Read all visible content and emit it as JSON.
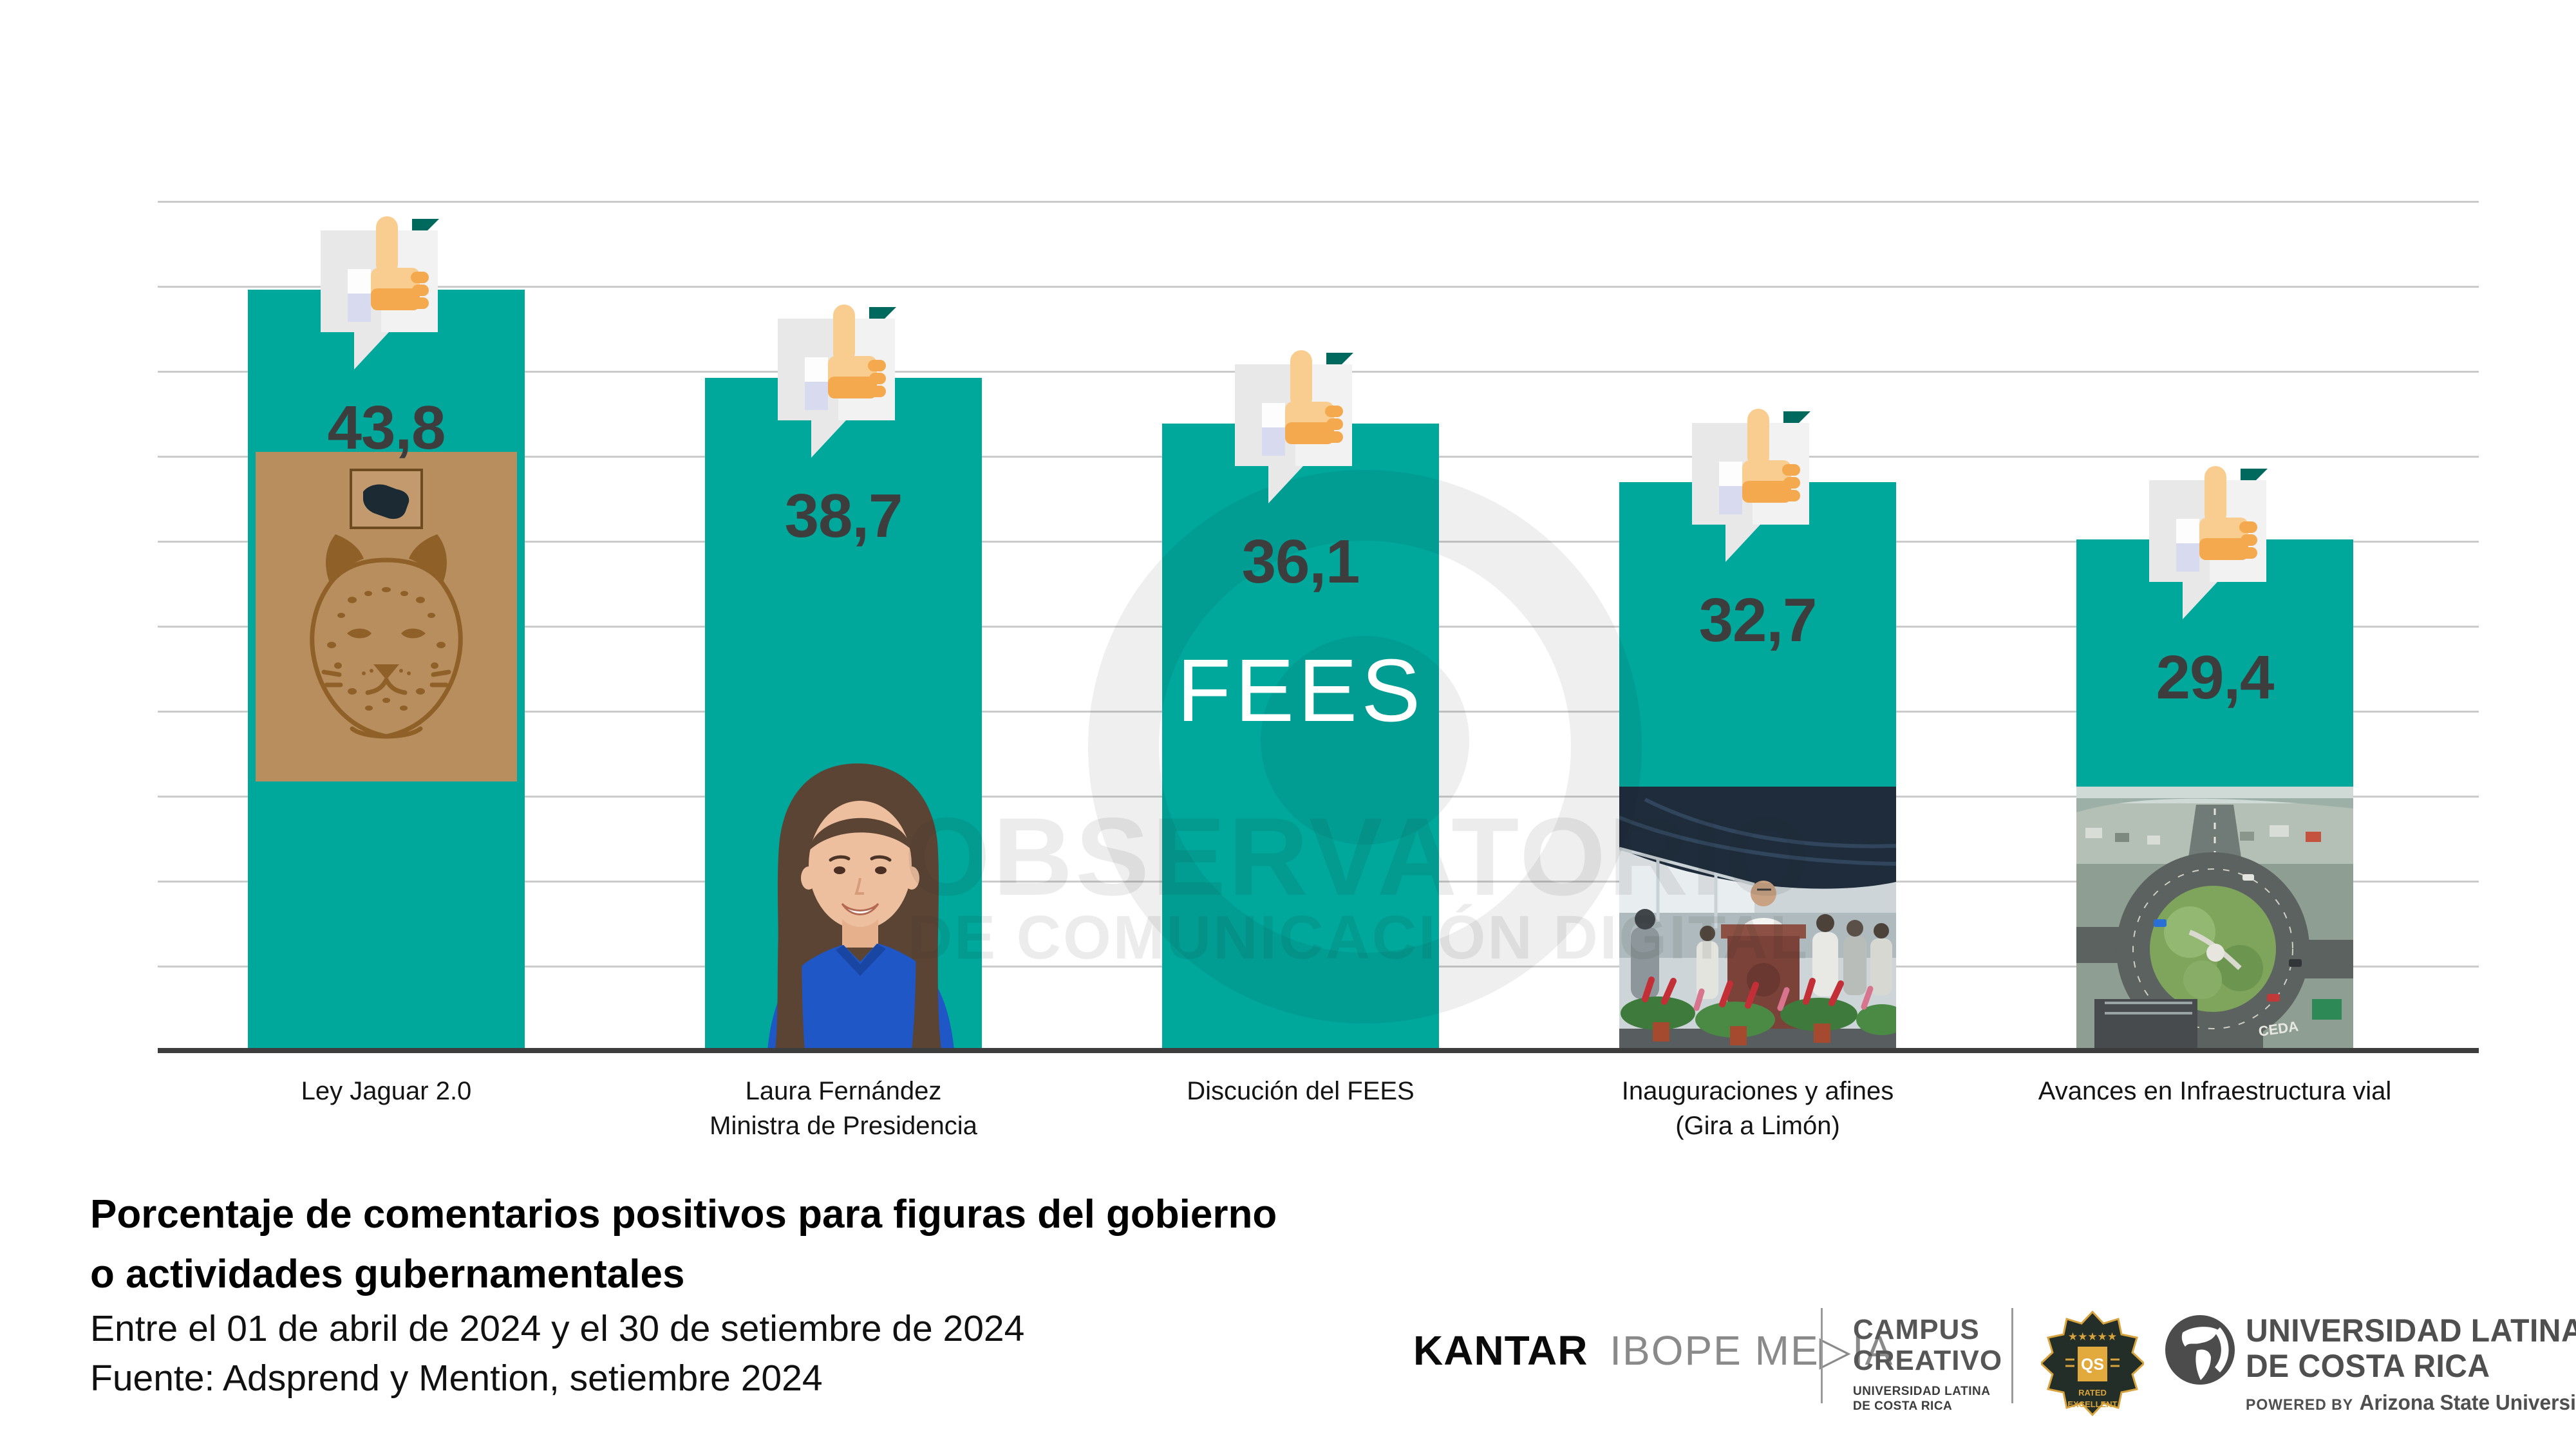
{
  "chart_data": {
    "type": "bar",
    "title": "Porcentaje de comentarios positivos para figuras del gobierno o actividades gubernamentales",
    "subtitle": "Entre el 01 de abril de 2024 y el 30 de setiembre de 2024",
    "source": "Fuente: Adsprend y Mention, setiembre 2024",
    "categories": [
      [
        "Ley Jaguar 2.0"
      ],
      [
        "Laura Fernández",
        "Ministra de Presidencia"
      ],
      [
        "Discución del FEES"
      ],
      [
        "Inauguraciones y afines",
        "(Gira a Limón)"
      ],
      [
        "Avances en Infraestructura vial"
      ]
    ],
    "values": [
      43.8,
      38.7,
      36.1,
      32.7,
      29.4
    ],
    "value_labels": [
      "43,8",
      "38,7",
      "36,1",
      "32,7",
      "29,4"
    ],
    "ylim": [
      0,
      48.9
    ],
    "gridlines": true,
    "legend": false,
    "bar_color": "#00a79b",
    "bar3_overlay_text": "FEES",
    "roundabout_road_marking": "CEDA"
  },
  "watermark": {
    "line1": "OBSERVATORIO",
    "line2": "DE COMUNICACIÓN DIGITAL"
  },
  "caption": {
    "title_line1": "Porcentaje de comentarios positivos para figuras del gobierno",
    "title_line2": "o actividades gubernamentales",
    "subtitle": "Entre el 01 de abril de 2024 y el 30 de setiembre de 2024",
    "source": "Fuente: Adsprend y Mention, setiembre 2024"
  },
  "footer": {
    "kantar": "KANTAR",
    "ibope_media": "IBOPE ME▷IA",
    "campus_line1": "CAMPUS",
    "campus_line2": "CREATIVO",
    "campus_sub1": "UNIVERSIDAD LATINA",
    "campus_sub2": "DE COSTA RICA",
    "qs_stars": "★★★★★",
    "qs": "QS",
    "qs_rated": "RATED",
    "qs_excellent": "EXCELLENT",
    "univ_line1": "UNIVERSIDAD LATINA",
    "univ_line2": "DE COSTA RICA",
    "powered_by": "POWERED BY",
    "powered_brand": "Arizona State University",
    "reg": "®"
  },
  "colors": {
    "teal": "#00a79b",
    "teal_dark": "#00695e",
    "grid": "#cbcbcb",
    "baseline": "#3d3d3d",
    "value_text": "#3d3d3d",
    "tan_panel": "#b98e5e",
    "jaguar_ink": "#8f6128",
    "gold": "#d9a43c",
    "badge_bg": "#232e29"
  }
}
